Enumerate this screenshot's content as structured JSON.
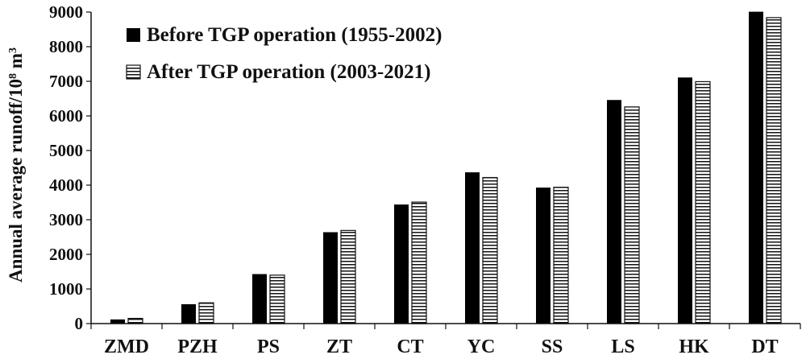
{
  "chart_data": {
    "type": "bar",
    "title": "",
    "xlabel": "",
    "ylabel": "Annual average runoff/10",
    "ylabel_sup": "8",
    "ylabel_unit": " m",
    "ylabel_unit_sup": "3",
    "categories": [
      "ZMD",
      "PZH",
      "PS",
      "ZT",
      "CT",
      "YC",
      "SS",
      "LS",
      "HK",
      "DT"
    ],
    "series": [
      {
        "name": "Before TGP operation (1955-2002)",
        "fill": "#000000",
        "pattern": "solid",
        "values": [
          120,
          560,
          1430,
          2640,
          3440,
          4370,
          3930,
          6460,
          7110,
          9010
        ]
      },
      {
        "name": "After TGP operation (2003-2021)",
        "fill": "#ffffff",
        "pattern": "horizontal-stripes",
        "values": [
          150,
          600,
          1400,
          2690,
          3510,
          4220,
          3940,
          6260,
          6990,
          8840
        ]
      }
    ],
    "yticks": [
      0,
      1000,
      2000,
      3000,
      4000,
      5000,
      6000,
      7000,
      8000,
      9000
    ],
    "ylim": [
      0,
      9000
    ],
    "grid": false,
    "legend_position": "top-left"
  }
}
